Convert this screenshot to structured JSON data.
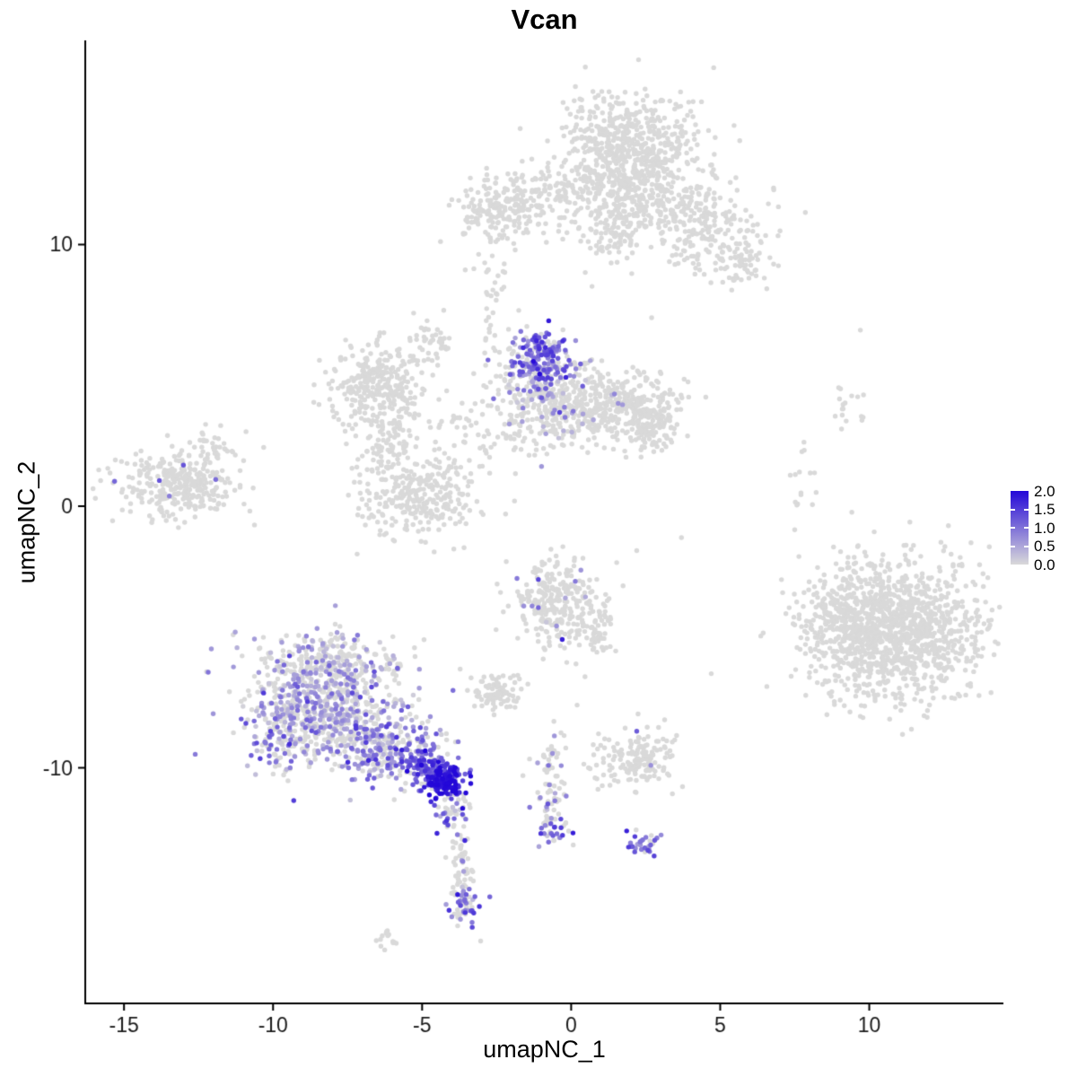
{
  "chart_data": {
    "type": "scatter",
    "title": "Vcan",
    "xlabel": "umapNC_1",
    "ylabel": "umapNC_2",
    "xlim": [
      -16.3,
      14.5
    ],
    "ylim": [
      -19.0,
      17.8
    ],
    "x_ticks": [
      -15,
      -10,
      -5,
      0,
      5,
      10
    ],
    "x_tick_labels": [
      "-15",
      "-10",
      "-5",
      "0",
      "5",
      "10"
    ],
    "y_ticks": [
      -10,
      0,
      10
    ],
    "y_tick_labels": [
      "-10",
      "0",
      "10"
    ],
    "grid": false,
    "point_radius": 2.7,
    "seed": 1337,
    "colors": {
      "background": "#FFFFFF",
      "axis": "#000000",
      "tick_label": "#1A1A1A",
      "low": "#D9D9D9",
      "high": "#2408D8"
    },
    "legend": {
      "position": "right",
      "min": 0,
      "max": 2,
      "ticks": [
        2.0,
        1.5,
        1.0,
        0.5,
        0.0
      ],
      "labels": [
        "2.0",
        "1.5",
        "1.0",
        "0.5",
        "0.0"
      ]
    },
    "cluster_fields": [
      "name",
      "cx",
      "cy",
      "sx",
      "sy",
      "n",
      "grey_frac",
      "expr_mean",
      "expr_sd"
    ],
    "clusters": [
      [
        "top-main",
        2.0,
        13.7,
        1.15,
        1.05,
        580,
        1,
        0,
        0
      ],
      [
        "top-lower",
        1.8,
        11.9,
        1.4,
        0.8,
        300,
        1,
        0,
        0
      ],
      [
        "top-neck",
        1.5,
        10.5,
        0.5,
        0.6,
        80,
        1,
        0,
        0
      ],
      [
        "top-arm",
        4.4,
        10.6,
        1.0,
        0.8,
        210,
        1,
        0,
        0
      ],
      [
        "top-arm-tip",
        5.7,
        9.2,
        0.5,
        0.45,
        60,
        1,
        0,
        0
      ],
      [
        "top-left-blob",
        -2.4,
        11.3,
        0.75,
        0.65,
        170,
        1,
        0,
        0
      ],
      [
        "top-left-bridge",
        -1.1,
        12.0,
        0.7,
        0.5,
        70,
        1,
        0,
        0
      ],
      [
        "upper-string",
        -2.6,
        7.9,
        0.3,
        1.0,
        40,
        1,
        0,
        0
      ],
      [
        "upper-left-small",
        -4.7,
        6.4,
        0.35,
        0.5,
        40,
        1,
        0,
        0
      ],
      [
        "mid-purple-core",
        -1.0,
        5.7,
        0.5,
        0.5,
        160,
        0.2,
        1.05,
        0.45
      ],
      [
        "mid-purple-fringe",
        -0.9,
        4.9,
        0.85,
        0.65,
        180,
        0.6,
        0.75,
        0.4
      ],
      [
        "mid-center",
        -0.6,
        3.6,
        0.9,
        0.8,
        240,
        0.88,
        0.6,
        0.3
      ],
      [
        "mid-right",
        1.6,
        3.8,
        0.95,
        0.7,
        320,
        0.985,
        0.7,
        0.3
      ],
      [
        "mid-right-tail",
        2.7,
        3.0,
        0.5,
        0.5,
        90,
        1,
        0,
        0
      ],
      [
        "mid-left-ring",
        -6.5,
        4.7,
        0.9,
        0.8,
        300,
        1,
        0,
        0
      ],
      [
        "mid-left-lower",
        -5.2,
        0.4,
        1.0,
        0.8,
        300,
        1,
        0,
        0
      ],
      [
        "mid-left-conn",
        -6.2,
        2.6,
        0.5,
        0.8,
        80,
        1,
        0,
        0
      ],
      [
        "mid-bridge",
        -3.3,
        3.0,
        0.8,
        0.7,
        60,
        1,
        0,
        0
      ],
      [
        "far-left",
        -13.2,
        0.9,
        1.0,
        0.65,
        320,
        0.975,
        0.9,
        0.3
      ],
      [
        "far-left-top",
        -12.2,
        2.2,
        0.4,
        0.35,
        40,
        1,
        0,
        0
      ],
      [
        "right-sparse-a",
        9.4,
        3.9,
        0.35,
        0.8,
        18,
        1,
        0,
        0
      ],
      [
        "right-sparse-b",
        7.7,
        0.6,
        0.3,
        0.9,
        16,
        1,
        0,
        0
      ],
      [
        "right-big",
        10.8,
        -4.8,
        1.45,
        1.3,
        1250,
        1,
        0,
        0
      ],
      [
        "right-big-west",
        9.1,
        -4.2,
        0.55,
        0.9,
        130,
        1,
        0,
        0
      ],
      [
        "bl-core",
        -8.1,
        -7.6,
        1.35,
        1.25,
        750,
        0.52,
        0.55,
        0.35
      ],
      [
        "bl-left-edge",
        -9.7,
        -8.6,
        0.5,
        0.8,
        120,
        0.5,
        0.7,
        0.4
      ],
      [
        "bl-top",
        -8.3,
        -5.9,
        1.1,
        0.45,
        140,
        0.8,
        0.4,
        0.3
      ],
      [
        "bl-trail",
        -6.1,
        -9.3,
        0.9,
        0.55,
        220,
        0.35,
        0.75,
        0.4
      ],
      [
        "bl-hot-approach",
        -4.9,
        -10.0,
        0.45,
        0.4,
        110,
        0.15,
        1.2,
        0.4
      ],
      [
        "bl-hotspot",
        -4.25,
        -10.5,
        0.33,
        0.33,
        140,
        0.03,
        1.8,
        0.25
      ],
      [
        "bl-below",
        -4.0,
        -11.7,
        0.25,
        0.5,
        40,
        0.45,
        0.9,
        0.5
      ],
      [
        "mid-bottom",
        -0.5,
        -3.6,
        0.75,
        0.8,
        270,
        0.975,
        0.8,
        0.3
      ],
      [
        "mid-bottom-tail",
        0.8,
        -4.8,
        0.45,
        0.6,
        60,
        1,
        0,
        0
      ],
      [
        "small-mid-blob",
        -2.6,
        -7.1,
        0.5,
        0.4,
        80,
        1,
        0,
        0
      ],
      [
        "trail-vert",
        -0.75,
        -10.7,
        0.3,
        1.1,
        75,
        0.85,
        0.7,
        0.4
      ],
      [
        "trail-bottom",
        -0.5,
        -12.4,
        0.28,
        0.3,
        26,
        0.45,
        1.0,
        0.35
      ],
      [
        "grey-patch",
        2.1,
        -9.7,
        0.75,
        0.5,
        160,
        0.99,
        0.6,
        0.2
      ],
      [
        "purple-spot",
        2.5,
        -12.9,
        0.25,
        0.28,
        30,
        0.3,
        1.1,
        0.35
      ],
      [
        "thin-trail",
        -3.7,
        -13.4,
        0.2,
        1.2,
        70,
        0.8,
        0.9,
        0.4
      ],
      [
        "thin-trail-tip",
        -3.55,
        -15.1,
        0.3,
        0.45,
        45,
        0.5,
        1.0,
        0.4
      ],
      [
        "tiny-bottom",
        -6.1,
        -16.5,
        0.28,
        0.22,
        14,
        1,
        0,
        0
      ]
    ],
    "singles": [
      [
        -2.9,
        9.3,
        0
      ],
      [
        0.7,
        8.4,
        0
      ],
      [
        2.7,
        7.2,
        0
      ],
      [
        7.5,
        -0.9,
        0
      ],
      [
        3.7,
        -1.2,
        0
      ],
      [
        2.2,
        -1.7,
        0
      ],
      [
        -2.2,
        -0.3,
        0
      ],
      [
        -1.9,
        0.2,
        0
      ],
      [
        0.2,
        -7.6,
        0
      ],
      [
        4.7,
        -6.4,
        0
      ],
      [
        2.2,
        -8.6,
        1.2
      ],
      [
        -1.1,
        -2.8,
        1.4
      ]
    ]
  }
}
